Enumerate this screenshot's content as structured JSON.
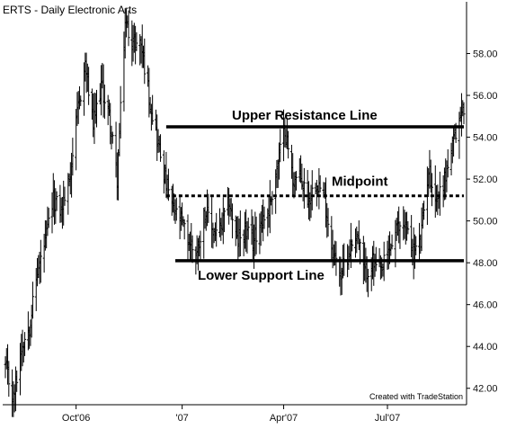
{
  "chart_data": {
    "type": "ohlc",
    "title": "ERTS - Daily  Electronic Arts",
    "credit": "Created with TradeStation",
    "xlabel": "",
    "ylabel": "",
    "ylim": [
      41.0,
      60.0
    ],
    "y_ticks": [
      "58.00",
      "56.00",
      "54.00",
      "52.00",
      "50.00",
      "48.00",
      "46.00",
      "44.00",
      "42.00"
    ],
    "y_tick_values": [
      58,
      56,
      54,
      52,
      50,
      48,
      46,
      44,
      42
    ],
    "x_range": [
      "2006-08-01",
      "2007-09-07"
    ],
    "x_ticks": [
      {
        "label": "Oct'06",
        "date": "2006-10-02"
      },
      {
        "label": "'07",
        "date": "2007-01-03"
      },
      {
        "label": "Apr'07",
        "date": "2007-04-02"
      },
      {
        "label": "Jul'07",
        "date": "2007-07-02"
      }
    ],
    "price_path": [
      [
        "2006-08-01",
        43.0
      ],
      [
        "2006-08-08",
        41.5
      ],
      [
        "2006-08-15",
        44.0
      ],
      [
        "2006-08-22",
        45.0
      ],
      [
        "2006-08-29",
        47.5
      ],
      [
        "2006-09-05",
        49.0
      ],
      [
        "2006-09-12",
        51.0
      ],
      [
        "2006-09-19",
        50.5
      ],
      [
        "2006-09-26",
        52.0
      ],
      [
        "2006-10-03",
        55.0
      ],
      [
        "2006-10-10",
        57.5
      ],
      [
        "2006-10-17",
        54.5
      ],
      [
        "2006-10-24",
        56.5
      ],
      [
        "2006-10-31",
        55.0
      ],
      [
        "2006-11-07",
        52.0
      ],
      [
        "2006-11-14",
        59.5
      ],
      [
        "2006-11-21",
        58.5
      ],
      [
        "2006-11-28",
        58.5
      ],
      [
        "2006-12-05",
        56.0
      ],
      [
        "2006-12-12",
        54.0
      ],
      [
        "2006-12-19",
        52.0
      ],
      [
        "2006-12-26",
        50.5
      ],
      [
        "2007-01-02",
        50.0
      ],
      [
        "2007-01-09",
        49.0
      ],
      [
        "2007-01-16",
        48.5
      ],
      [
        "2007-01-23",
        50.5
      ],
      [
        "2007-01-30",
        49.5
      ],
      [
        "2007-02-06",
        49.5
      ],
      [
        "2007-02-13",
        51.0
      ],
      [
        "2007-02-20",
        49.0
      ],
      [
        "2007-02-27",
        49.5
      ],
      [
        "2007-03-06",
        49.0
      ],
      [
        "2007-03-13",
        50.0
      ],
      [
        "2007-03-20",
        50.5
      ],
      [
        "2007-03-27",
        52.5
      ],
      [
        "2007-04-03",
        54.5
      ],
      [
        "2007-04-10",
        52.0
      ],
      [
        "2007-04-17",
        52.0
      ],
      [
        "2007-04-24",
        51.0
      ],
      [
        "2007-05-01",
        52.0
      ],
      [
        "2007-05-08",
        51.0
      ],
      [
        "2007-05-15",
        48.5
      ],
      [
        "2007-05-22",
        47.5
      ],
      [
        "2007-05-29",
        48.5
      ],
      [
        "2007-06-05",
        49.5
      ],
      [
        "2007-06-12",
        47.5
      ],
      [
        "2007-06-19",
        48.0
      ],
      [
        "2007-06-26",
        47.5
      ],
      [
        "2007-07-03",
        48.5
      ],
      [
        "2007-07-10",
        49.5
      ],
      [
        "2007-07-17",
        50.0
      ],
      [
        "2007-07-24",
        48.5
      ],
      [
        "2007-07-31",
        49.0
      ],
      [
        "2007-08-07",
        52.5
      ],
      [
        "2007-08-14",
        51.0
      ],
      [
        "2007-08-21",
        52.0
      ],
      [
        "2007-08-28",
        53.5
      ],
      [
        "2007-09-04",
        55.0
      ],
      [
        "2007-09-07",
        55.5
      ]
    ],
    "annotations": [
      {
        "label": "Upper Resistance Line",
        "value": 54.5,
        "from": "2006-12-20",
        "to": "2007-09-07",
        "style": "solid"
      },
      {
        "label": "Midpoint",
        "value": 51.2,
        "from": "2006-12-20",
        "to": "2007-09-07",
        "style": "dashed"
      },
      {
        "label": "Lower Support Line",
        "value": 48.1,
        "from": "2006-12-28",
        "to": "2007-09-07",
        "style": "solid"
      }
    ],
    "grid": false,
    "bar_color": "#000000"
  }
}
